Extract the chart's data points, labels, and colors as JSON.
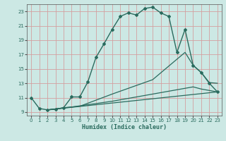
{
  "xlabel": "Humidex (Indice chaleur)",
  "bg_color": "#cce8e4",
  "grid_color": "#d4a0a0",
  "line_color": "#2a6b5e",
  "xlim": [
    -0.5,
    23.5
  ],
  "ylim": [
    8.5,
    24.0
  ],
  "xticks": [
    0,
    1,
    2,
    3,
    4,
    5,
    6,
    7,
    8,
    9,
    10,
    11,
    12,
    13,
    14,
    15,
    16,
    17,
    18,
    19,
    20,
    21,
    22,
    23
  ],
  "yticks": [
    9,
    11,
    13,
    15,
    17,
    19,
    21,
    23
  ],
  "line1_x": [
    0,
    1,
    2,
    3,
    4,
    5,
    6,
    7,
    8,
    9,
    10,
    11,
    12,
    13,
    14,
    15,
    16,
    17,
    18,
    19,
    20,
    21,
    22,
    23
  ],
  "line1_y": [
    11.0,
    9.5,
    9.3,
    9.4,
    9.6,
    11.1,
    11.1,
    13.2,
    16.6,
    18.5,
    20.5,
    22.3,
    22.8,
    22.5,
    23.4,
    23.6,
    22.8,
    22.3,
    17.3,
    20.5,
    15.5,
    14.5,
    13.0,
    11.8
  ],
  "line2_x": [
    2,
    3,
    4,
    5,
    6,
    10,
    15,
    19,
    20,
    21,
    22,
    23
  ],
  "line2_y": [
    9.3,
    9.4,
    9.6,
    9.7,
    9.8,
    11.5,
    13.5,
    17.3,
    15.5,
    14.5,
    13.1,
    13.0
  ],
  "line3_x": [
    2,
    5,
    10,
    15,
    20,
    21,
    22,
    23
  ],
  "line3_y": [
    9.3,
    9.7,
    10.5,
    11.5,
    12.5,
    12.2,
    12.0,
    11.8
  ],
  "line4_x": [
    2,
    23
  ],
  "line4_y": [
    9.3,
    11.8
  ]
}
